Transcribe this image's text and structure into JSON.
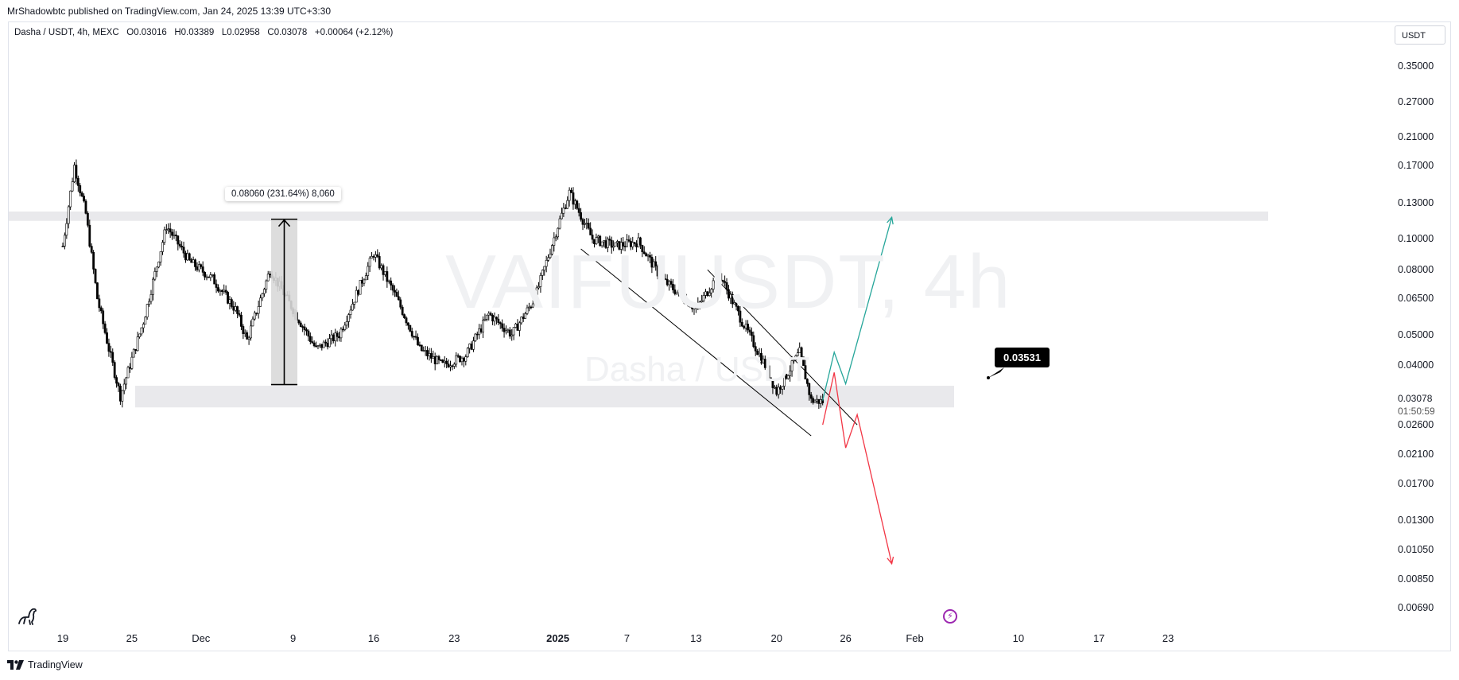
{
  "header": {
    "published": "MrShadowbtc published on TradingView.com, Jan 24, 2025 13:39 UTC+3:30"
  },
  "legend": {
    "symbol": "Dasha / USDT, 4h, MEXC",
    "open": "O0.03016",
    "high": "H0.03389",
    "low": "L0.02958",
    "close": "C0.03078",
    "change": "+0.00064 (+2.12%)"
  },
  "currency": "USDT",
  "watermark": {
    "main": "VAIFUUSDT, 4h",
    "sub": "Dasha / USDT"
  },
  "measure": {
    "label": "0.08060 (231.64%) 8,060"
  },
  "callout": {
    "label": "0.03531"
  },
  "last_price": {
    "value": "0.03078",
    "countdown": "01:50:59"
  },
  "footer": {
    "brand": "TradingView"
  },
  "colors": {
    "candle": "#000000",
    "green_path": "#26a69a",
    "red_path": "#f23645",
    "zone": "#e9e9ec",
    "measure_fill": "#d9d9d9"
  },
  "icons": {
    "bottom_left": "dinosaur-logo-icon",
    "time_marker": "lightning-icon",
    "footer_logo": "tradingview-logo-icon"
  },
  "chart_data": {
    "type": "candlestick",
    "title": "Dasha / USDT, 4h, MEXC",
    "y_scale": "log",
    "ylim": [
      0.0063,
      0.4
    ],
    "y_ticks": [
      "0.35000",
      "0.27000",
      "0.21000",
      "0.17000",
      "0.13000",
      "0.10000",
      "0.08000",
      "0.06500",
      "0.05000",
      "0.04000",
      "0.03078",
      "0.02600",
      "0.02100",
      "0.01700",
      "0.01300",
      "0.01050",
      "0.00850",
      "0.00690"
    ],
    "x_ticks": [
      {
        "label": "19",
        "bold": false
      },
      {
        "label": "25",
        "bold": false
      },
      {
        "label": "Dec",
        "bold": false
      },
      {
        "label": "9",
        "bold": false
      },
      {
        "label": "16",
        "bold": false
      },
      {
        "label": "23",
        "bold": false
      },
      {
        "label": "2025",
        "bold": true
      },
      {
        "label": "7",
        "bold": false
      },
      {
        "label": "13",
        "bold": false
      },
      {
        "label": "20",
        "bold": false
      },
      {
        "label": "26",
        "bold": false
      },
      {
        "label": "Feb",
        "bold": false
      },
      {
        "label": "10",
        "bold": false
      },
      {
        "label": "17",
        "bold": false
      },
      {
        "label": "23",
        "bold": false
      }
    ],
    "price_path": [
      [
        "Nov 19",
        0.095
      ],
      [
        "Nov 20",
        0.17
      ],
      [
        "Nov 21",
        0.12
      ],
      [
        "Nov 22",
        0.065
      ],
      [
        "Nov 23",
        0.045
      ],
      [
        "Nov 24",
        0.032
      ],
      [
        "Nov 26",
        0.055
      ],
      [
        "Nov 28",
        0.11
      ],
      [
        "Nov 30",
        0.085
      ],
      [
        "Dec 2",
        0.075
      ],
      [
        "Dec 4",
        0.06
      ],
      [
        "Dec 5",
        0.048
      ],
      [
        "Dec 7",
        0.08
      ],
      [
        "Dec 9",
        0.06
      ],
      [
        "Dec 11",
        0.045
      ],
      [
        "Dec 13",
        0.05
      ],
      [
        "Dec 16",
        0.09
      ],
      [
        "Dec 18",
        0.065
      ],
      [
        "Dec 20",
        0.045
      ],
      [
        "Dec 22",
        0.04
      ],
      [
        "Dec 24",
        0.043
      ],
      [
        "Dec 26",
        0.058
      ],
      [
        "Dec 28",
        0.05
      ],
      [
        "Dec 30",
        0.065
      ],
      [
        "Jan 1",
        0.11
      ],
      [
        "Jan 2",
        0.14
      ],
      [
        "Jan 4",
        0.1
      ],
      [
        "Jan 6",
        0.095
      ],
      [
        "Jan 8",
        0.098
      ],
      [
        "Jan 10",
        0.075
      ],
      [
        "Jan 12",
        0.065
      ],
      [
        "Jan 13",
        0.06
      ],
      [
        "Jan 15",
        0.078
      ],
      [
        "Jan 17",
        0.055
      ],
      [
        "Jan 19",
        0.04
      ],
      [
        "Jan 20",
        0.033
      ],
      [
        "Jan 22",
        0.044
      ],
      [
        "Jan 23",
        0.031
      ],
      [
        "Jan 24",
        0.03078
      ]
    ],
    "zones": [
      {
        "name": "resistance",
        "low": 0.114,
        "high": 0.122
      },
      {
        "name": "support",
        "low": 0.0295,
        "high": 0.0345
      }
    ],
    "measure": {
      "from": 0.0348,
      "to": 0.1154,
      "change": "0.08060 (231.64%)",
      "bars": "8,060"
    },
    "channel": {
      "upper": [
        [
          "Jan 14",
          0.08
        ],
        [
          "Jan 27",
          0.026
        ]
      ],
      "lower": [
        [
          "Jan 3",
          0.093
        ],
        [
          "Jan 23",
          0.024
        ]
      ]
    },
    "projections": {
      "bullish": [
        [
          "Jan 24",
          0.031
        ],
        [
          "Jan 25",
          0.044
        ],
        [
          "Jan 26",
          0.035
        ],
        [
          "Jan 30",
          0.117
        ]
      ],
      "bearish": [
        [
          "Jan 24",
          0.026
        ],
        [
          "Jan 25",
          0.038
        ],
        [
          "Jan 26",
          0.022
        ],
        [
          "Jan 27",
          0.028
        ],
        [
          "Jan 30",
          0.0095
        ]
      ]
    },
    "grid": false,
    "legend_position": "top-left"
  }
}
